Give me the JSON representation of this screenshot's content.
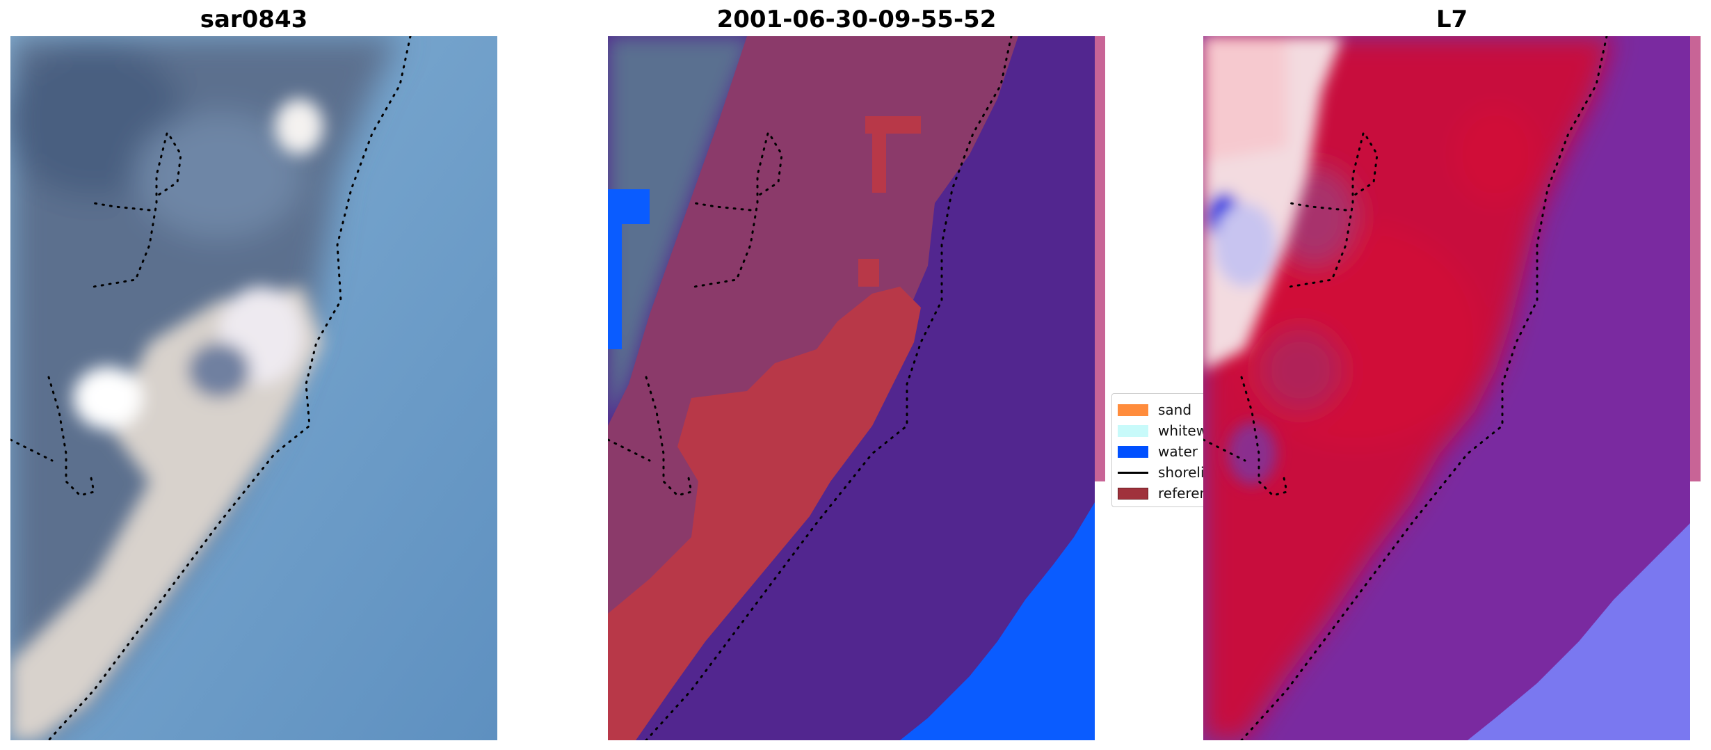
{
  "figure": {
    "panels": [
      {
        "title": "sar0843"
      },
      {
        "title": "2001-06-30-09-55-52"
      },
      {
        "title": "L7"
      }
    ],
    "legend": [
      {
        "label": "sand",
        "kind": "patch",
        "color": "#ff8c3c"
      },
      {
        "label": "whitewater",
        "kind": "patch",
        "color": "#c8fafa"
      },
      {
        "label": "water",
        "kind": "patch",
        "color": "#0050ff"
      },
      {
        "label": "shoreline",
        "kind": "line",
        "color": "#000000"
      },
      {
        "label": "reference",
        "kind": "patch",
        "color": "#a0323c"
      }
    ],
    "colors": {
      "sea": "#6a9cc8",
      "land_dark": "#5a7090",
      "beach_sand": "#dcd6d0",
      "classified_land": "#8b3a6a",
      "classified_sand_red": "#b83848",
      "classified_water_purple": "#52268f",
      "classified_water_blue": "#0a5cff",
      "heat_red": "#c8103c",
      "heat_purple": "#7a2aa0",
      "heat_white": "#f5dde0",
      "heat_blue": "#1020e0",
      "strip_pink": "#c86496",
      "shoreline": "#000000"
    }
  }
}
